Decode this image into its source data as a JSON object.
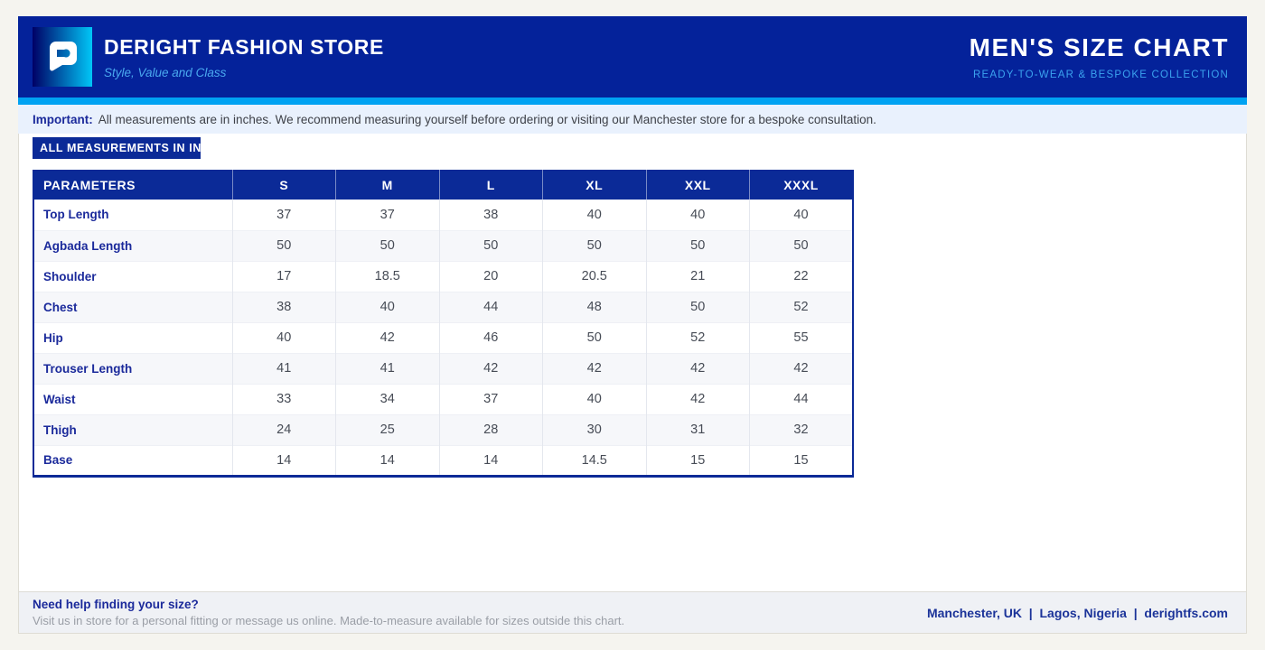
{
  "brand": {
    "name": "DERIGHT FASHION STORE",
    "tagline": "Style, Value and Class"
  },
  "header": {
    "title": "MEN'S SIZE CHART",
    "subtitle": "READY-TO-WEAR & BESPOKE COLLECTION"
  },
  "notice": {
    "label": "Important:",
    "text": "All measurements are in inches. We recommend measuring yourself before ordering or visiting our Manchester store for a bespoke consultation."
  },
  "badge": {
    "label": "ALL MEASUREMENTS IN INCHES"
  },
  "table": {
    "columns": [
      "PARAMETERS",
      "S",
      "M",
      "L",
      "XL",
      "XXL",
      "XXXL"
    ],
    "rows": [
      {
        "label": "Top Length",
        "values": [
          "37",
          "37",
          "38",
          "40",
          "40",
          "40"
        ]
      },
      {
        "label": "Agbada Length",
        "values": [
          "50",
          "50",
          "50",
          "50",
          "50",
          "50"
        ]
      },
      {
        "label": "Shoulder",
        "values": [
          "17",
          "18.5",
          "20",
          "20.5",
          "21",
          "22"
        ]
      },
      {
        "label": "Chest",
        "values": [
          "38",
          "40",
          "44",
          "48",
          "50",
          "52"
        ]
      },
      {
        "label": "Hip",
        "values": [
          "40",
          "42",
          "46",
          "50",
          "52",
          "55"
        ]
      },
      {
        "label": "Trouser Length",
        "values": [
          "41",
          "41",
          "42",
          "42",
          "42",
          "42"
        ]
      },
      {
        "label": "Waist",
        "values": [
          "33",
          "34",
          "37",
          "40",
          "42",
          "44"
        ]
      },
      {
        "label": "Thigh",
        "values": [
          "24",
          "25",
          "28",
          "30",
          "31",
          "32"
        ]
      },
      {
        "label": "Base",
        "values": [
          "14",
          "14",
          "14",
          "14.5",
          "15",
          "15"
        ]
      }
    ],
    "units": "inches"
  },
  "footer": {
    "help_title": "Need help finding your size?",
    "help_text": "Visit us in store for a personal fitting or message us online. Made-to-measure available for sizes outside this chart.",
    "locations": "Manchester, UK  |  Lagos, Nigeria  |  derightfs.com"
  },
  "colors": {
    "header_navy": "#04229a",
    "table_navy": "#0b2a97",
    "accent_cyan": "#00a2f2",
    "tagline_blue": "#4aa9ef",
    "notice_bg": "#e9f1fd",
    "page_bg": "#f5f4ef"
  }
}
